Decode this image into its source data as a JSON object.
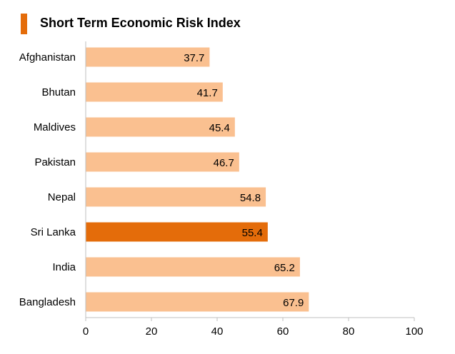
{
  "chart_data": {
    "type": "bar",
    "orientation": "horizontal",
    "title": "Short Term Economic Risk Index",
    "categories": [
      "Afghanistan",
      "Bhutan",
      "Maldives",
      "Pakistan",
      "Nepal",
      "Sri Lanka",
      "India",
      "Bangladesh"
    ],
    "values": [
      37.7,
      41.7,
      45.4,
      46.7,
      54.8,
      55.4,
      65.2,
      67.9
    ],
    "value_labels": [
      "37.7",
      "41.7",
      "45.4",
      "46.7",
      "54.8",
      "55.4",
      "65.2",
      "67.9"
    ],
    "highlight": "Sri Lanka",
    "xlim": [
      0,
      100
    ],
    "xticks": [
      0,
      20,
      40,
      60,
      80,
      100
    ],
    "xtick_labels": [
      "0",
      "20",
      "40",
      "60",
      "80",
      "100"
    ],
    "xlabel": "",
    "ylabel": "",
    "grid": false,
    "legend": "none"
  },
  "colors": {
    "bar": "#FAC090",
    "highlight_bar": "#E46C0A",
    "title_accent": "#E46C0A",
    "axis": "#BFBFBF"
  }
}
